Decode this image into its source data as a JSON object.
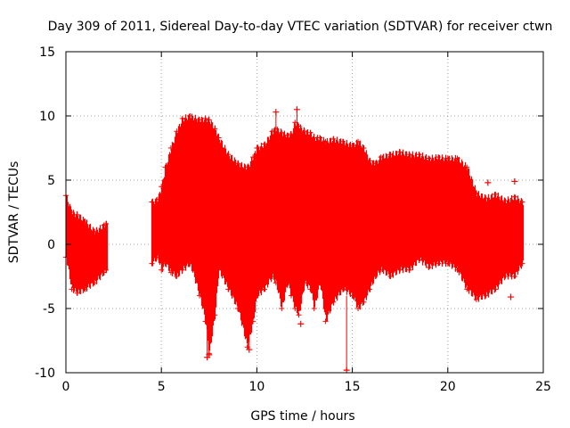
{
  "chart_data": {
    "type": "scatter",
    "title": "Day 309 of 2011, Sidereal Day-to-day VTEC variation (SDTVAR) for receiver ctwn",
    "xlabel": "GPS time / hours",
    "ylabel": "SDTVAR / TECUs",
    "xlim": [
      0,
      25
    ],
    "ylim": [
      -10,
      15
    ],
    "x_ticks": [
      0,
      5,
      10,
      15,
      20,
      25
    ],
    "y_ticks": [
      -10,
      -5,
      0,
      5,
      10,
      15
    ],
    "grid": true,
    "marker": "plus",
    "series": [
      {
        "name": "SDTVAR",
        "color": "#ff0000",
        "envelope": {
          "x": [
            0.0,
            0.3,
            0.6,
            1.0,
            1.5,
            2.0,
            2.1,
            4.5,
            4.8,
            5.0,
            5.2,
            5.5,
            5.8,
            6.1,
            6.5,
            7.0,
            7.3,
            7.5,
            7.8,
            8.0,
            8.5,
            9.0,
            9.5,
            9.8,
            10.0,
            10.4,
            10.8,
            11.0,
            11.3,
            11.6,
            11.8,
            12.0,
            12.2,
            12.5,
            12.8,
            13.0,
            13.3,
            13.6,
            14.0,
            14.5,
            15.0,
            15.3,
            15.6,
            15.9,
            16.2,
            16.5,
            17.0,
            17.5,
            18.0,
            18.5,
            19.0,
            19.5,
            20.0,
            20.5,
            21.0,
            21.5,
            22.0,
            22.5,
            23.0,
            23.5,
            23.9
          ],
          "upper": [
            3.8,
            2.5,
            2.3,
            1.8,
            1.0,
            1.5,
            1.6,
            3.3,
            3.5,
            4.5,
            6.0,
            7.5,
            8.8,
            9.8,
            10.0,
            9.7,
            9.8,
            9.7,
            9.0,
            8.3,
            7.0,
            6.3,
            6.0,
            6.8,
            7.5,
            7.8,
            8.8,
            9.0,
            8.7,
            8.5,
            8.6,
            9.5,
            9.2,
            8.8,
            8.7,
            8.3,
            8.3,
            8.0,
            8.2,
            8.0,
            7.7,
            8.0,
            7.5,
            6.5,
            6.3,
            6.8,
            7.0,
            7.2,
            7.0,
            7.0,
            6.7,
            6.8,
            6.7,
            6.7,
            6.0,
            4.0,
            3.6,
            3.9,
            3.4,
            3.7,
            3.3
          ],
          "lower": [
            -1.0,
            -3.5,
            -3.8,
            -3.5,
            -3.0,
            -2.2,
            -2.0,
            -1.5,
            -1.0,
            -2.0,
            -1.5,
            -2.2,
            -2.5,
            -2.0,
            -1.5,
            -4.0,
            -6.0,
            -8.5,
            -5.5,
            -2.0,
            -3.5,
            -5.0,
            -8.0,
            -6.0,
            -4.0,
            -3.5,
            -2.5,
            -3.0,
            -5.0,
            -3.0,
            -4.0,
            -5.0,
            -5.5,
            -3.0,
            -3.5,
            -5.0,
            -3.0,
            -6.0,
            -4.5,
            -3.5,
            -4.0,
            -5.0,
            -4.5,
            -3.5,
            -2.5,
            -2.0,
            -2.5,
            -2.0,
            -2.0,
            -1.2,
            -1.8,
            -1.5,
            -1.5,
            -2.0,
            -3.5,
            -4.3,
            -4.0,
            -3.5,
            -2.5,
            -2.5,
            -1.5
          ]
        },
        "outliers": [
          {
            "x": 7.4,
            "y": -8.8
          },
          {
            "x": 7.5,
            "y": -8.6
          },
          {
            "x": 9.6,
            "y": -8.2
          },
          {
            "x": 11.0,
            "y": 10.3
          },
          {
            "x": 12.1,
            "y": 10.5
          },
          {
            "x": 12.3,
            "y": -6.2
          },
          {
            "x": 14.7,
            "y": -9.8
          },
          {
            "x": 15.3,
            "y": -4.4
          },
          {
            "x": 22.1,
            "y": 4.8
          },
          {
            "x": 23.5,
            "y": 4.9
          },
          {
            "x": 23.3,
            "y": -4.1
          }
        ]
      }
    ]
  }
}
